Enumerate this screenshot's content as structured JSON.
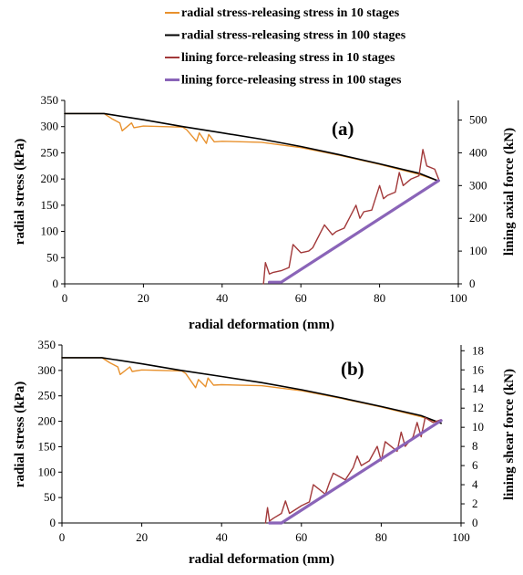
{
  "legend": [
    {
      "label": "radial stress-releasing stress in 10 stages",
      "color": "#E8912D"
    },
    {
      "label": "radial stress-releasing stress in 100 stages",
      "color": "#000000"
    },
    {
      "label": "lining force-releasing stress in 10 stages",
      "color": "#A2393A"
    },
    {
      "label": "lining force-releasing stress in 100 stages",
      "color": "#8A64B8"
    }
  ],
  "chart_data": [
    {
      "type": "line",
      "panel_label": "(a)",
      "xlabel": "radial deformation (mm)",
      "ylabel": "radial stress (kPa)",
      "y2label": "lining axial force (kN)",
      "xlim": [
        0,
        100
      ],
      "ylim": [
        0,
        350
      ],
      "y2lim": [
        0,
        560
      ],
      "xticks": [
        "0",
        "20",
        "40",
        "60",
        "80",
        "100"
      ],
      "yticks": [
        "0",
        "50",
        "100",
        "150",
        "200",
        "250",
        "300",
        "350"
      ],
      "y2ticks": [
        "0",
        "100",
        "200",
        "300",
        "400",
        "500"
      ],
      "series": [
        {
          "name": "radial stress-releasing stress in 10 stages",
          "axis": "left",
          "color": "#E8912D",
          "x": [
            0,
            10,
            12,
            14,
            14.6,
            17,
            17.6,
            20,
            30,
            31,
            33.5,
            34.2,
            36,
            36.6,
            38,
            40,
            50,
            60,
            70,
            80,
            90,
            95
          ],
          "y": [
            325,
            325,
            315,
            307,
            292,
            307,
            298,
            301,
            299,
            294,
            272,
            288,
            268,
            285,
            271,
            272,
            270,
            260,
            245,
            228,
            209,
            196
          ]
        },
        {
          "name": "radial stress-releasing stress in 100 stages",
          "axis": "left",
          "color": "#000000",
          "x": [
            0,
            10,
            20,
            30,
            40,
            50,
            60,
            70,
            80,
            90,
            95
          ],
          "y": [
            325,
            325,
            313,
            300,
            288,
            276,
            262,
            246,
            229,
            211,
            196
          ]
        },
        {
          "name": "lining force-releasing stress in 10 stages",
          "axis": "right",
          "color": "#A2393A",
          "x": [
            50.5,
            51,
            52,
            53,
            55,
            57,
            58,
            60,
            62,
            63,
            66,
            68,
            69,
            71,
            74,
            75,
            76,
            78,
            80,
            81,
            82,
            84,
            85,
            86,
            88,
            90,
            91,
            92,
            94,
            95
          ],
          "y": [
            0,
            65,
            30,
            35,
            40,
            50,
            120,
            95,
            100,
            110,
            180,
            150,
            160,
            170,
            240,
            200,
            220,
            225,
            300,
            260,
            270,
            280,
            340,
            300,
            320,
            330,
            410,
            360,
            350,
            320
          ]
        },
        {
          "name": "lining force-releasing stress in 100 stages",
          "axis": "right",
          "color": "#8A64B8",
          "x": [
            52,
            55,
            95
          ],
          "y": [
            5,
            5,
            315
          ]
        }
      ]
    },
    {
      "type": "line",
      "panel_label": "(b)",
      "xlabel": "radial deformation (mm)",
      "ylabel": "radial stress (kPa)",
      "y2label": "lining shear force (kN)",
      "xlim": [
        0,
        100
      ],
      "ylim": [
        0,
        350
      ],
      "y2lim": [
        0,
        18.6
      ],
      "xticks": [
        "0",
        "20",
        "40",
        "60",
        "80",
        "100"
      ],
      "yticks": [
        "0",
        "50",
        "100",
        "150",
        "200",
        "250",
        "300",
        "350"
      ],
      "y2ticks": [
        "0",
        "2",
        "4",
        "6",
        "8",
        "10",
        "12",
        "14",
        "16",
        "18"
      ],
      "series": [
        {
          "name": "radial stress-releasing stress in 10 stages",
          "axis": "left",
          "color": "#E8912D",
          "x": [
            0,
            10,
            12,
            14,
            14.6,
            17,
            17.6,
            20,
            30,
            31,
            33.5,
            34.2,
            36,
            36.6,
            38,
            40,
            50,
            60,
            70,
            80,
            90,
            95
          ],
          "y": [
            325,
            325,
            315,
            307,
            292,
            307,
            298,
            301,
            299,
            294,
            266,
            282,
            268,
            285,
            271,
            272,
            270,
            260,
            245,
            228,
            209,
            196
          ]
        },
        {
          "name": "radial stress-releasing stress in 100 stages",
          "axis": "left",
          "color": "#000000",
          "x": [
            0,
            10,
            20,
            30,
            40,
            50,
            60,
            70,
            80,
            90,
            95
          ],
          "y": [
            325,
            325,
            313,
            300,
            288,
            276,
            262,
            246,
            229,
            211,
            196
          ]
        },
        {
          "name": "lining force-releasing stress in 10 stages",
          "axis": "right",
          "color": "#A2393A",
          "x": [
            51,
            51.5,
            52,
            53,
            55,
            56,
            57,
            60,
            62,
            63,
            66,
            67,
            68,
            71,
            73,
            74,
            75,
            77,
            79,
            80,
            81,
            84,
            85,
            86,
            88,
            89,
            90,
            91,
            93,
            95
          ],
          "y": [
            0,
            1.6,
            0.2,
            0.5,
            1.0,
            2.3,
            1.0,
            1.8,
            2.2,
            4.0,
            3.0,
            4.2,
            5.2,
            4.5,
            5.8,
            7.0,
            6.0,
            6.5,
            8.0,
            6.5,
            8.5,
            7.5,
            9.5,
            8.0,
            9.0,
            10.5,
            9.0,
            11.0,
            10.5,
            10.8
          ]
        },
        {
          "name": "lining force-releasing stress in 100 stages",
          "axis": "right",
          "color": "#8A64B8",
          "x": [
            52,
            55,
            95
          ],
          "y": [
            0,
            0,
            10.7
          ]
        }
      ]
    }
  ]
}
